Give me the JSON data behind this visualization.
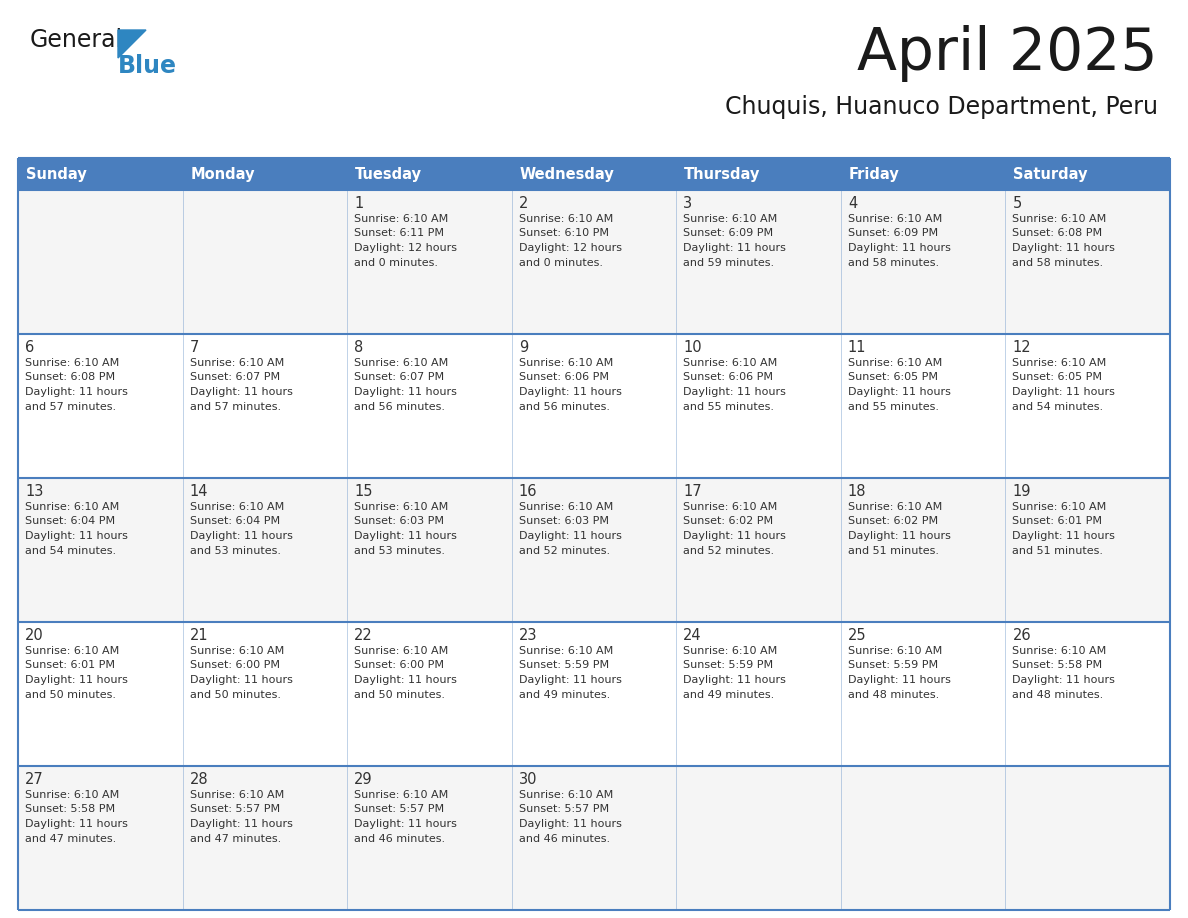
{
  "title": "April 2025",
  "subtitle": "Chuquis, Huanuco Department, Peru",
  "days_of_week": [
    "Sunday",
    "Monday",
    "Tuesday",
    "Wednesday",
    "Thursday",
    "Friday",
    "Saturday"
  ],
  "header_bg": "#4a7ebe",
  "header_text": "#FFFFFF",
  "row_bg_odd": "#f5f5f5",
  "row_bg_even": "#ffffff",
  "border_color": "#4a7ebe",
  "title_color": "#1a1a1a",
  "subtitle_color": "#1a1a1a",
  "cell_text_color": "#333333",
  "day_num_color": "#333333",
  "logo_black": "#1a1a1a",
  "logo_blue": "#2e86c1",
  "triangle_color": "#2e86c1",
  "weeks": [
    {
      "days": [
        {
          "date": "",
          "info": ""
        },
        {
          "date": "",
          "info": ""
        },
        {
          "date": "1",
          "info": "Sunrise: 6:10 AM\nSunset: 6:11 PM\nDaylight: 12 hours\nand 0 minutes."
        },
        {
          "date": "2",
          "info": "Sunrise: 6:10 AM\nSunset: 6:10 PM\nDaylight: 12 hours\nand 0 minutes."
        },
        {
          "date": "3",
          "info": "Sunrise: 6:10 AM\nSunset: 6:09 PM\nDaylight: 11 hours\nand 59 minutes."
        },
        {
          "date": "4",
          "info": "Sunrise: 6:10 AM\nSunset: 6:09 PM\nDaylight: 11 hours\nand 58 minutes."
        },
        {
          "date": "5",
          "info": "Sunrise: 6:10 AM\nSunset: 6:08 PM\nDaylight: 11 hours\nand 58 minutes."
        }
      ]
    },
    {
      "days": [
        {
          "date": "6",
          "info": "Sunrise: 6:10 AM\nSunset: 6:08 PM\nDaylight: 11 hours\nand 57 minutes."
        },
        {
          "date": "7",
          "info": "Sunrise: 6:10 AM\nSunset: 6:07 PM\nDaylight: 11 hours\nand 57 minutes."
        },
        {
          "date": "8",
          "info": "Sunrise: 6:10 AM\nSunset: 6:07 PM\nDaylight: 11 hours\nand 56 minutes."
        },
        {
          "date": "9",
          "info": "Sunrise: 6:10 AM\nSunset: 6:06 PM\nDaylight: 11 hours\nand 56 minutes."
        },
        {
          "date": "10",
          "info": "Sunrise: 6:10 AM\nSunset: 6:06 PM\nDaylight: 11 hours\nand 55 minutes."
        },
        {
          "date": "11",
          "info": "Sunrise: 6:10 AM\nSunset: 6:05 PM\nDaylight: 11 hours\nand 55 minutes."
        },
        {
          "date": "12",
          "info": "Sunrise: 6:10 AM\nSunset: 6:05 PM\nDaylight: 11 hours\nand 54 minutes."
        }
      ]
    },
    {
      "days": [
        {
          "date": "13",
          "info": "Sunrise: 6:10 AM\nSunset: 6:04 PM\nDaylight: 11 hours\nand 54 minutes."
        },
        {
          "date": "14",
          "info": "Sunrise: 6:10 AM\nSunset: 6:04 PM\nDaylight: 11 hours\nand 53 minutes."
        },
        {
          "date": "15",
          "info": "Sunrise: 6:10 AM\nSunset: 6:03 PM\nDaylight: 11 hours\nand 53 minutes."
        },
        {
          "date": "16",
          "info": "Sunrise: 6:10 AM\nSunset: 6:03 PM\nDaylight: 11 hours\nand 52 minutes."
        },
        {
          "date": "17",
          "info": "Sunrise: 6:10 AM\nSunset: 6:02 PM\nDaylight: 11 hours\nand 52 minutes."
        },
        {
          "date": "18",
          "info": "Sunrise: 6:10 AM\nSunset: 6:02 PM\nDaylight: 11 hours\nand 51 minutes."
        },
        {
          "date": "19",
          "info": "Sunrise: 6:10 AM\nSunset: 6:01 PM\nDaylight: 11 hours\nand 51 minutes."
        }
      ]
    },
    {
      "days": [
        {
          "date": "20",
          "info": "Sunrise: 6:10 AM\nSunset: 6:01 PM\nDaylight: 11 hours\nand 50 minutes."
        },
        {
          "date": "21",
          "info": "Sunrise: 6:10 AM\nSunset: 6:00 PM\nDaylight: 11 hours\nand 50 minutes."
        },
        {
          "date": "22",
          "info": "Sunrise: 6:10 AM\nSunset: 6:00 PM\nDaylight: 11 hours\nand 50 minutes."
        },
        {
          "date": "23",
          "info": "Sunrise: 6:10 AM\nSunset: 5:59 PM\nDaylight: 11 hours\nand 49 minutes."
        },
        {
          "date": "24",
          "info": "Sunrise: 6:10 AM\nSunset: 5:59 PM\nDaylight: 11 hours\nand 49 minutes."
        },
        {
          "date": "25",
          "info": "Sunrise: 6:10 AM\nSunset: 5:59 PM\nDaylight: 11 hours\nand 48 minutes."
        },
        {
          "date": "26",
          "info": "Sunrise: 6:10 AM\nSunset: 5:58 PM\nDaylight: 11 hours\nand 48 minutes."
        }
      ]
    },
    {
      "days": [
        {
          "date": "27",
          "info": "Sunrise: 6:10 AM\nSunset: 5:58 PM\nDaylight: 11 hours\nand 47 minutes."
        },
        {
          "date": "28",
          "info": "Sunrise: 6:10 AM\nSunset: 5:57 PM\nDaylight: 11 hours\nand 47 minutes."
        },
        {
          "date": "29",
          "info": "Sunrise: 6:10 AM\nSunset: 5:57 PM\nDaylight: 11 hours\nand 46 minutes."
        },
        {
          "date": "30",
          "info": "Sunrise: 6:10 AM\nSunset: 5:57 PM\nDaylight: 11 hours\nand 46 minutes."
        },
        {
          "date": "",
          "info": ""
        },
        {
          "date": "",
          "info": ""
        },
        {
          "date": "",
          "info": ""
        }
      ]
    }
  ]
}
